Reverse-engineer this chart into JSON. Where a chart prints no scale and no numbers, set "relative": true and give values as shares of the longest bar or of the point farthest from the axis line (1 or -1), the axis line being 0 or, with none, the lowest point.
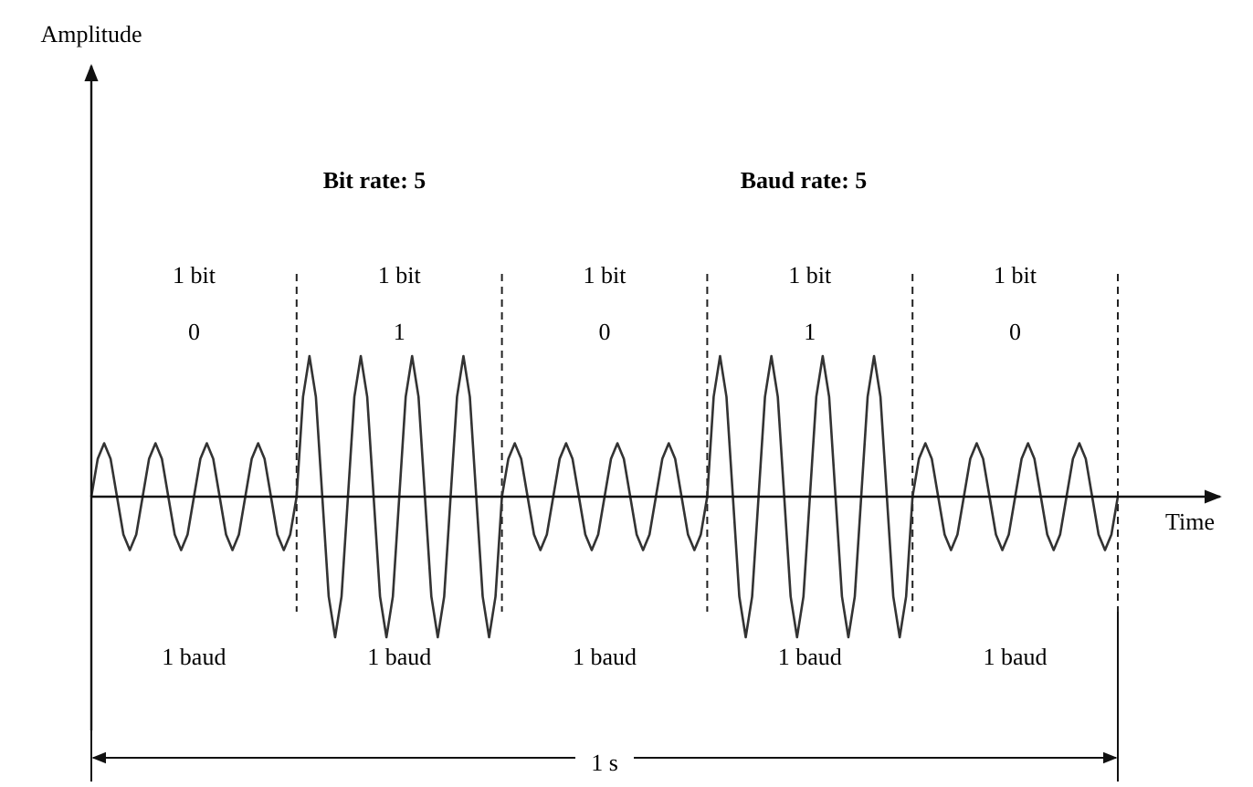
{
  "chart_data": {
    "type": "line",
    "relative": true,
    "xlabel": "Time",
    "categories": [
      null,
      null,
      null,
      null,
      null,
      null,
      null,
      null,
      null,
      null,
      null,
      null,
      null,
      null,
      null,
      null,
      null,
      null,
      null,
      null,
      null,
      null,
      null,
      null,
      null,
      null,
      null,
      null,
      null,
      null,
      null,
      null,
      null,
      null,
      null,
      null,
      null,
      null,
      null,
      null,
      null,
      null,
      null,
      null,
      null,
      null,
      null,
      null,
      null,
      null,
      null,
      null,
      null,
      null,
      null,
      null,
      null,
      null,
      null,
      null,
      null,
      null,
      null,
      null,
      null,
      null,
      null,
      null,
      null,
      null,
      null,
      null,
      null,
      null,
      null,
      null,
      null,
      null,
      null,
      null,
      null,
      null,
      null,
      null,
      null,
      null,
      null,
      null,
      null,
      null,
      null,
      null,
      null,
      null,
      null,
      null,
      null,
      null,
      null,
      null,
      null,
      null,
      null,
      null,
      null,
      null,
      null,
      null,
      null,
      null,
      null,
      null,
      null,
      null,
      null,
      null,
      null,
      null,
      null,
      null,
      null,
      null,
      null,
      null,
      null,
      null,
      null,
      null,
      null,
      null,
      null,
      null,
      null,
      null,
      null,
      null,
      null,
      null,
      null,
      null,
      null,
      null,
      null,
      null,
      null,
      null,
      null,
      null,
      null,
      null,
      null,
      null,
      null,
      null,
      null,
      null,
      null,
      null,
      null,
      null,
      null
    ],
    "series": [
      {
        "color": "#333333",
        "values": [
          0,
          0.27,
          0.38,
          0.27,
          0,
          -0.27,
          -0.38,
          -0.27,
          0,
          0.27,
          0.38,
          0.27,
          0,
          -0.27,
          -0.38,
          -0.27,
          0,
          0.27,
          0.38,
          0.27,
          0,
          -0.27,
          -0.38,
          -0.27,
          0,
          0.27,
          0.38,
          0.27,
          0,
          -0.27,
          -0.38,
          -0.27,
          0,
          0.71,
          1,
          0.71,
          0,
          -0.71,
          -1,
          -0.71,
          0,
          0.71,
          1,
          0.71,
          0,
          -0.71,
          -1,
          -0.71,
          0,
          0.71,
          1,
          0.71,
          0,
          -0.71,
          -1,
          -0.71,
          0,
          0.71,
          1,
          0.71,
          0,
          -0.71,
          -1,
          -0.71,
          0,
          0.27,
          0.38,
          0.27,
          0,
          -0.27,
          -0.38,
          -0.27,
          0,
          0.27,
          0.38,
          0.27,
          0,
          -0.27,
          -0.38,
          -0.27,
          0,
          0.27,
          0.38,
          0.27,
          0,
          -0.27,
          -0.38,
          -0.27,
          0,
          0.27,
          0.38,
          0.27,
          0,
          -0.27,
          -0.38,
          -0.27,
          0,
          0.71,
          1,
          0.71,
          0,
          -0.71,
          -1,
          -0.71,
          0,
          0.71,
          1,
          0.71,
          0,
          -0.71,
          -1,
          -0.71,
          0,
          0.71,
          1,
          0.71,
          0,
          -0.71,
          -1,
          -0.71,
          0,
          0.71,
          1,
          0.71,
          0,
          -0.71,
          -1,
          -0.71,
          0,
          0.27,
          0.38,
          0.27,
          0,
          -0.27,
          -0.38,
          -0.27,
          0,
          0.27,
          0.38,
          0.27,
          0,
          -0.27,
          -0.38,
          -0.27,
          0,
          0.27,
          0.38,
          0.27,
          0,
          -0.27,
          -0.38,
          -0.27,
          0,
          0.27,
          0.38,
          0.27,
          0,
          -0.27,
          -0.38,
          -0.27,
          0
        ]
      }
    ],
    "annotations": [
      "Bit rate: 5",
      "Baud rate: 5",
      "1 bit",
      "1 bit",
      "1 bit",
      "1 bit",
      "1 bit",
      "0",
      "1",
      "0",
      "1",
      "0",
      "1 baud",
      "1 baud",
      "1 baud",
      "1 baud",
      "1 baud",
      "1 s",
      "Amplitude"
    ]
  }
}
